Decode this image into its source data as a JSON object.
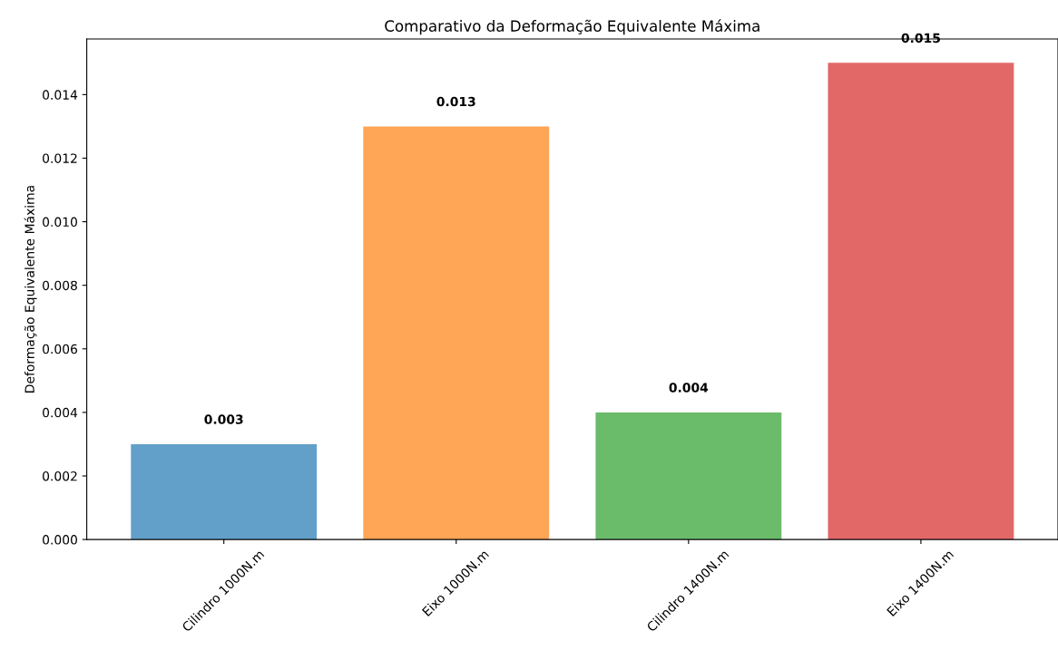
{
  "chart_data": {
    "type": "bar",
    "title": "Comparativo da Deformação Equivalente Máxima",
    "ylabel": "Deformação Equivalente Máxima",
    "categories": [
      "Cilindro 1000N.m",
      "Eixo 1000N.m",
      "Cilindro 1400N.m",
      "Eixo 1400N.m"
    ],
    "values": [
      0.003,
      0.013,
      0.004,
      0.015
    ],
    "colors": [
      "#62a0ca",
      "#ffa556",
      "#6abc6a",
      "#e26868"
    ],
    "value_labels": [
      "0.003",
      "0.013",
      "0.004",
      "0.015"
    ],
    "ylim": [
      0,
      0.01575
    ],
    "yticks": [
      {
        "value": 0,
        "label": "0.000"
      },
      {
        "value": 0.002,
        "label": "0.002"
      },
      {
        "value": 0.004,
        "label": "0.004"
      },
      {
        "value": 0.006,
        "label": "0.006"
      },
      {
        "value": 0.008,
        "label": "0.008"
      },
      {
        "value": 0.01,
        "label": "0.010"
      },
      {
        "value": 0.012,
        "label": "0.012"
      },
      {
        "value": 0.014,
        "label": "0.014"
      }
    ],
    "grid": false
  }
}
